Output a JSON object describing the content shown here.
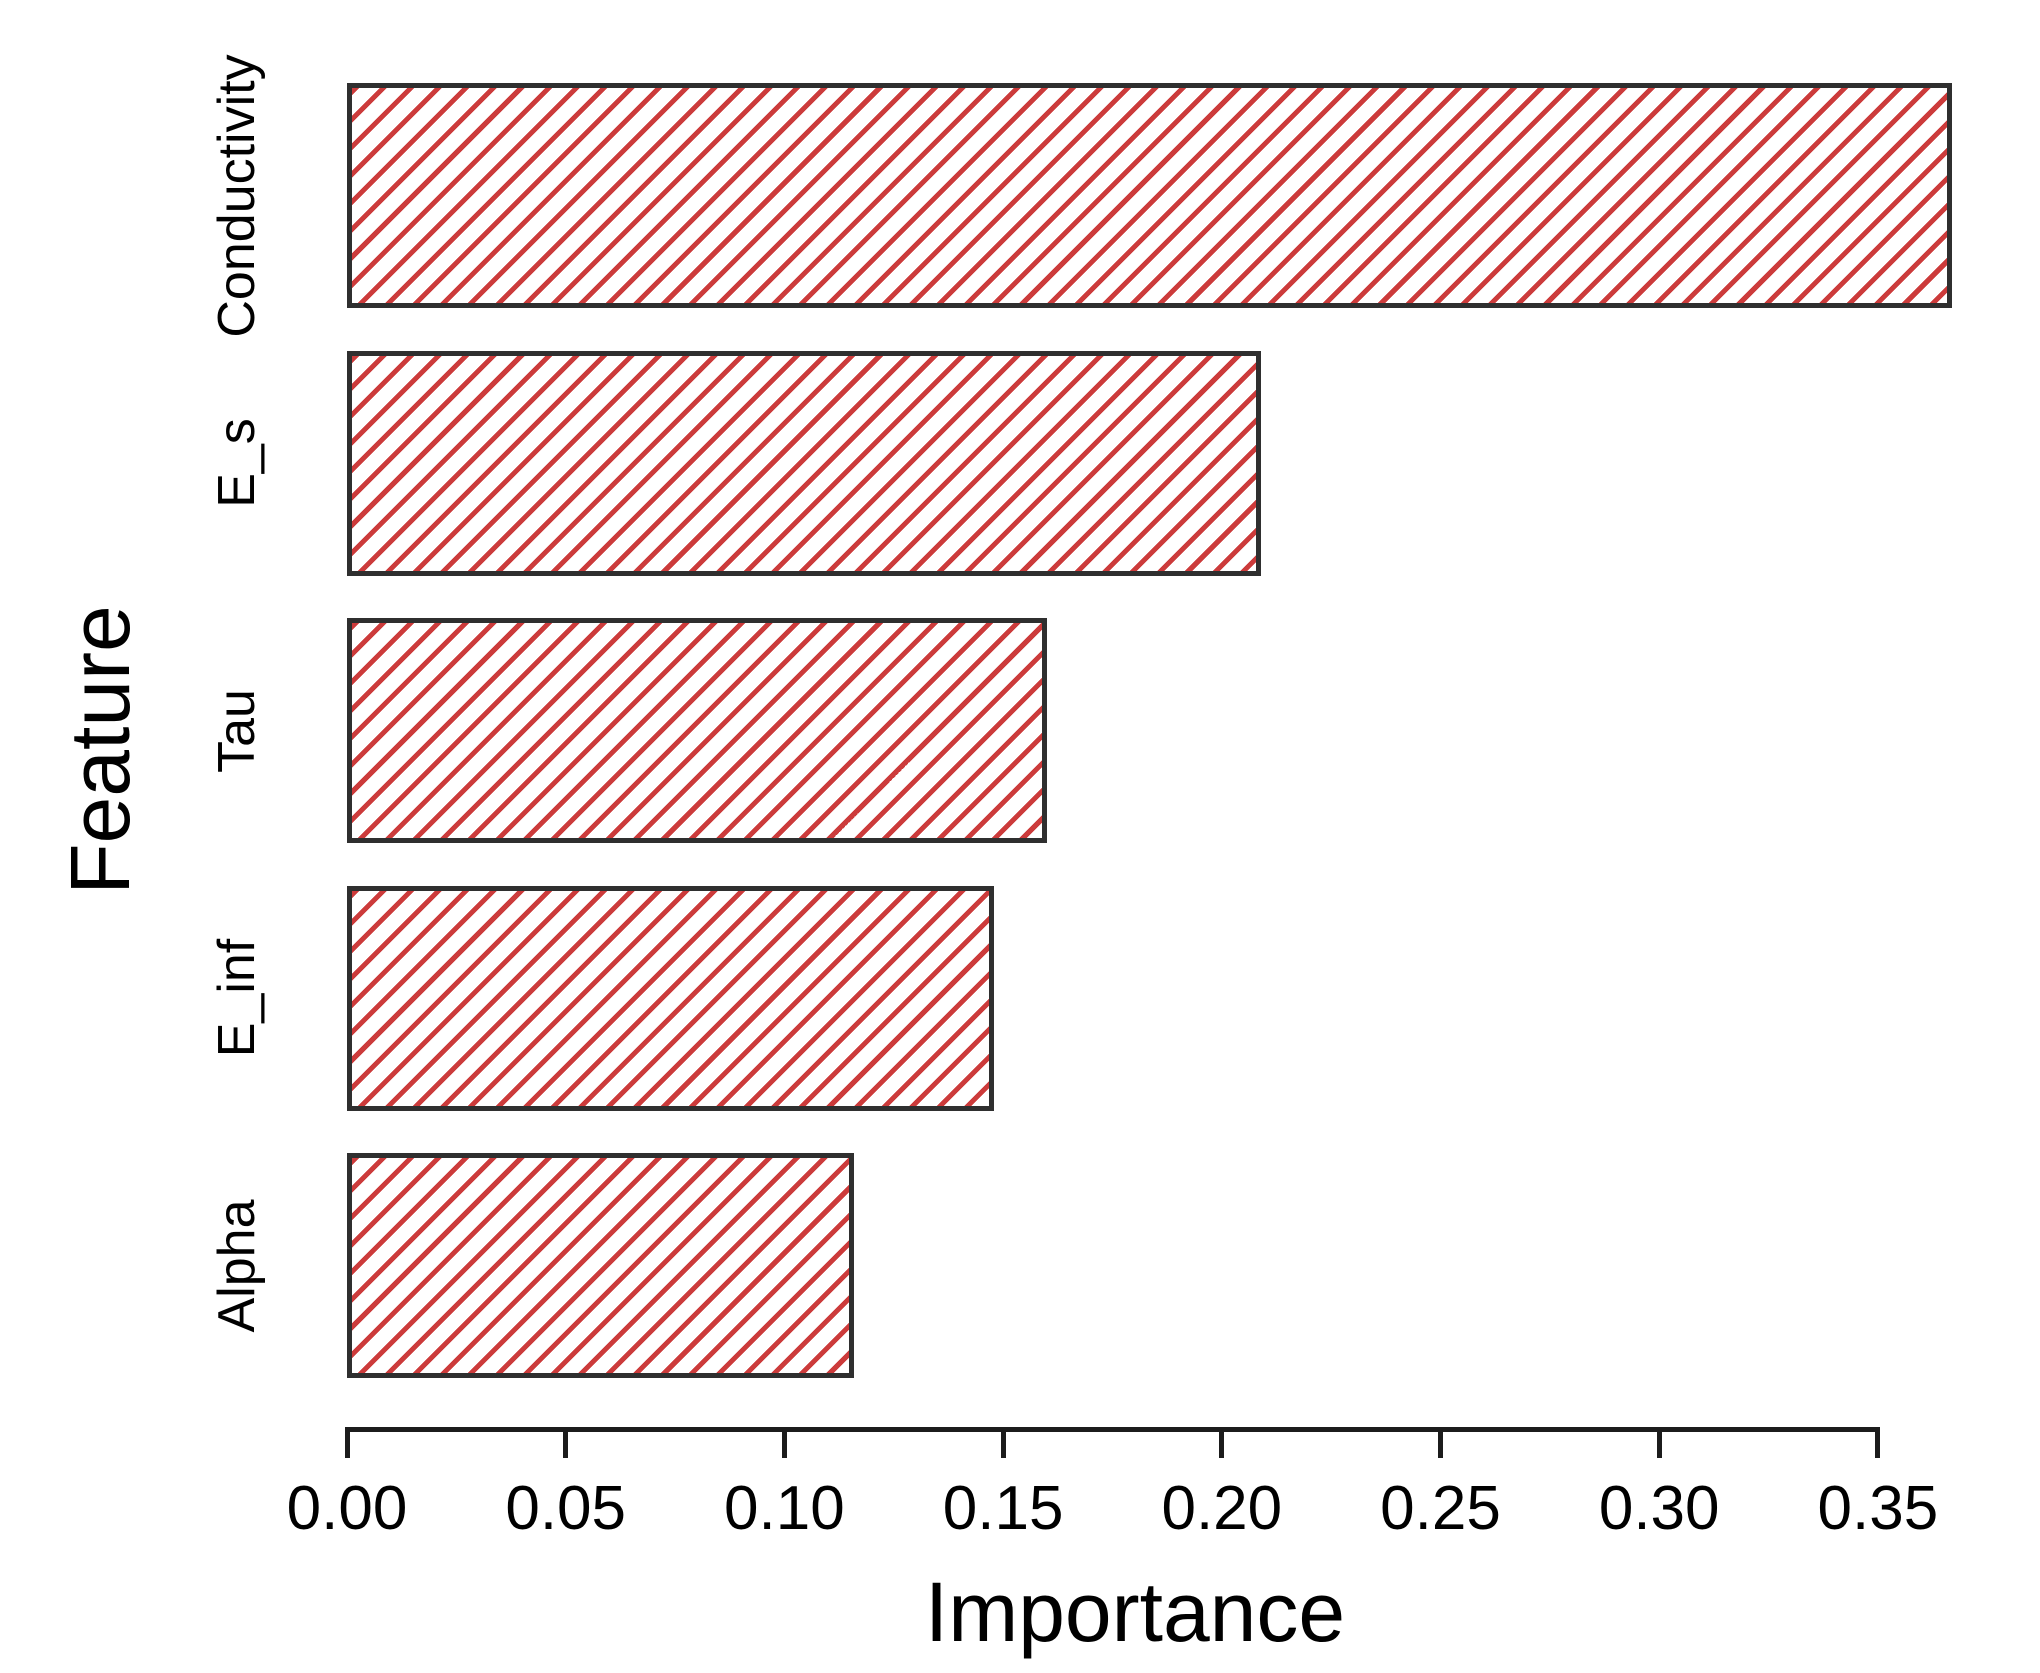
{
  "chart_data": {
    "type": "bar",
    "orientation": "horizontal",
    "title": "",
    "xlabel": "Importance",
    "ylabel": "Feature",
    "categories": [
      "Conductivity",
      "E_s",
      "Tau",
      "E_inf",
      "Alpha"
    ],
    "values": [
      0.367,
      0.209,
      0.16,
      0.148,
      0.116
    ],
    "x_ticks": [
      0.0,
      0.05,
      0.1,
      0.15,
      0.2,
      0.25,
      0.3,
      0.35
    ],
    "x_tick_labels": [
      "0.00",
      "0.05",
      "0.10",
      "0.15",
      "0.20",
      "0.25",
      "0.30",
      "0.35"
    ],
    "xlim": [
      0,
      0.3675
    ],
    "grid": false,
    "legend": null,
    "bar_style": {
      "fill_color": "#ffffff",
      "hatch": "forward-diagonal",
      "hatch_color": "#cc3b3b",
      "border_color": "#2f2f2f",
      "axis_color": "#1c1c1c"
    }
  }
}
